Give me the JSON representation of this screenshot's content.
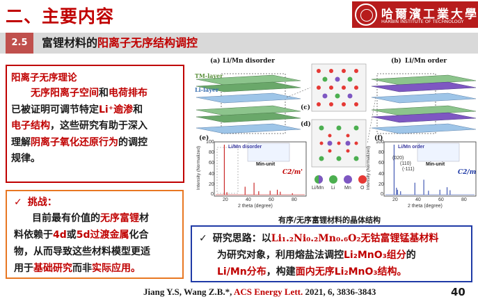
{
  "header": {
    "title": "二、主要内容",
    "logo_cn": "哈爾濱工業大學",
    "logo_en": "HARBIN INSTITUTE OF TECHNOLOGY"
  },
  "section": {
    "number": "2.5",
    "title_prefix": "富锂材料的",
    "title_highlight": "阳离子无序结构调控"
  },
  "theory_box": {
    "title": "阳离子无序理论",
    "l1_a": "无序阳离子空间",
    "l1_b": "和",
    "l1_c": "电荷排布",
    "l2_a": "已被证明可调节特定",
    "l2_b": "Li⁺逾渗",
    "l2_c": "和",
    "l3_a": "电子结构",
    "l3_b": "，这些研究有助于深入",
    "l4_a": "理解",
    "l4_b": "阴离子氧化还原行为",
    "l4_c": "的调控",
    "l5": "规律。"
  },
  "challenge_box": {
    "check": "✓",
    "title": "挑战：",
    "l1_a": "目前最有价值的",
    "l1_b": "无序富锂",
    "l1_c": "材",
    "l2_a": "料依赖于",
    "l2_b": "4d",
    "l2_c": "或",
    "l2_d": "5d过渡金属",
    "l2_e": "化合",
    "l3": "物，从而导致这些材料模型更适",
    "l4_a": "用于",
    "l4_b": "基础研究",
    "l4_c": "而非",
    "l4_d": "实际应用。"
  },
  "figure": {
    "a_label": "(a)",
    "a_title": "Li/Mn disorder",
    "b_label": "(b)",
    "b_title": "Li/Mn order",
    "c_label": "(c)",
    "d_label": "(d)",
    "e_label": "(e)",
    "f_label": "(f)",
    "tm_layer": "TM-layer",
    "li_layer": "Li-layer",
    "e_inset_title": "Li/Mn disorder",
    "e_min_unit": "Min-unit",
    "e_space_group": "C2/m'",
    "f_inset_title": "Li/Mn order",
    "f_min_unit": "Min-unit",
    "f_space_group": "C2/m",
    "peak_020": "(020)",
    "peak_110": "(110)",
    "peak_111": "(-111)",
    "legend": [
      "Li/Mn",
      "Li",
      "Mn",
      "O"
    ],
    "ylabel": "Intensity (Normalized)",
    "xlabel": "2 theta (degree)",
    "yticks": [
      "100",
      "80",
      "60",
      "40",
      "20",
      "0"
    ],
    "xticks": [
      "20",
      "40",
      "60",
      "80"
    ],
    "caption": "有序/无序富锂材料的晶体结构"
  },
  "approach_box": {
    "check": "✓",
    "l1_a": "研究思路：以",
    "l1_b": "Li₁.₂Ni₀.₂Mn₀.₆O₂",
    "l1_c": "无钴富锂锰基材料",
    "l2_a": "为研究对象，利用熔盐法调控",
    "l2_b": "Li₂MnO₃组分",
    "l2_c": "的",
    "l3_a": "Li/Mn分布",
    "l3_b": "，构建",
    "l3_c": "面内无序Li₂MnO₃结构。"
  },
  "citation": {
    "authors": "Jiang Y.S, Wang Z.B.*, ",
    "journal": "ACS Energy Lett.",
    "details": " 2021, 6, 3836-3843"
  },
  "page_number": "40",
  "colors": {
    "accent_red": "#c00000",
    "section_red": "#c0504d",
    "orange_border": "#e87722",
    "blue_border": "#1f3aa6",
    "li_green": "#4caf50",
    "mn_purple": "#7e57c2",
    "o_red": "#e53935",
    "li_blue": "#90caf9"
  },
  "chart_data": [
    {
      "type": "bar",
      "title": "",
      "xlabel": "2 theta (degree)",
      "ylabel": "Intensity (Normalized)",
      "ylim": [
        0,
        100
      ],
      "xlim": [
        10,
        90
      ],
      "x": [
        18.7,
        21.0,
        36.8,
        44.6,
        48.7,
        58.6,
        64.9,
        67.5,
        78.0
      ],
      "values": [
        100,
        5,
        16,
        24,
        7,
        8,
        10,
        6,
        3
      ],
      "legend": "C2/m'"
    },
    {
      "type": "bar",
      "title": "",
      "xlabel": "2 theta (degree)",
      "ylabel": "Intensity (Normalized)",
      "ylim": [
        0,
        100
      ],
      "xlim": [
        10,
        90
      ],
      "x": [
        18.7,
        20.8,
        21.7,
        24.4,
        36.8,
        44.6,
        48.7,
        58.6,
        64.9,
        67.5
      ],
      "values": [
        100,
        14,
        10,
        7,
        24,
        30,
        8,
        10,
        15,
        9
      ],
      "legend": "C2/m"
    }
  ]
}
